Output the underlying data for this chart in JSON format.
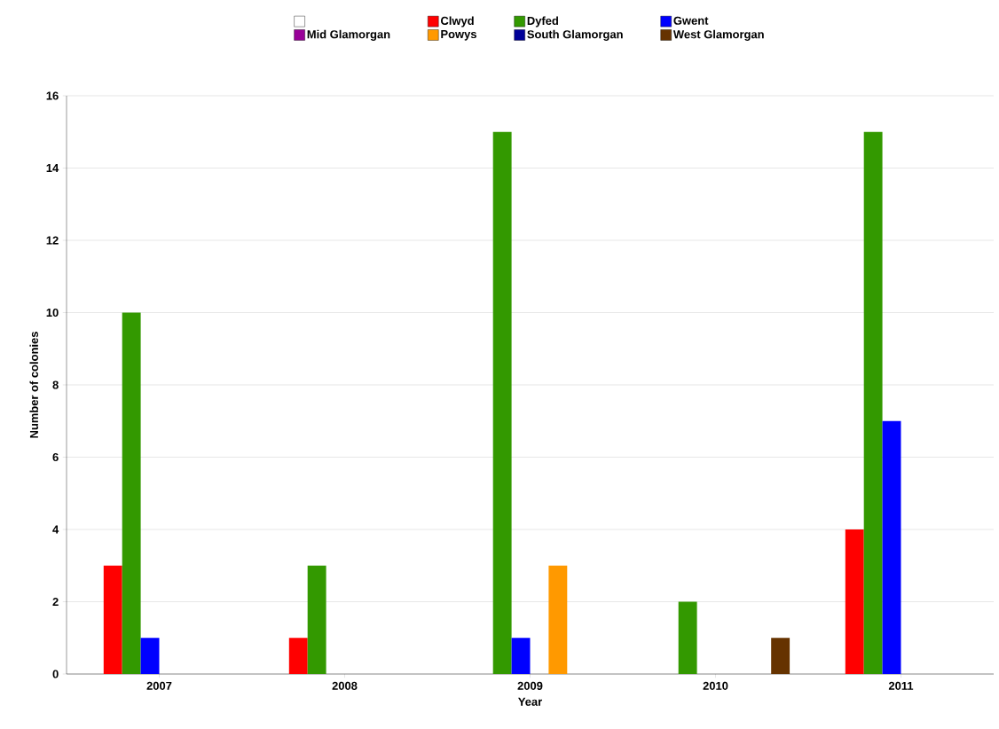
{
  "chart_data": {
    "type": "bar",
    "xlabel": "Year",
    "ylabel": "Number of colonies",
    "categories": [
      "2007",
      "2008",
      "2009",
      "2010",
      "2011"
    ],
    "series": [
      {
        "color": "#ffffff",
        "values": [
          null,
          null,
          null,
          null,
          null
        ]
      },
      {
        "name": "Clwyd",
        "color": "#ff0000",
        "values": [
          3,
          1,
          null,
          null,
          4
        ]
      },
      {
        "name": "Dyfed",
        "color": "#339900",
        "values": [
          10,
          3,
          15,
          2,
          15
        ]
      },
      {
        "name": "Gwent",
        "color": "#0000ff",
        "values": [
          1,
          null,
          1,
          null,
          7
        ]
      },
      {
        "name": "Mid Glamorgan",
        "color": "#990099",
        "values": [
          null,
          null,
          null,
          null,
          null
        ]
      },
      {
        "name": "Powys",
        "color": "#ff9900",
        "values": [
          null,
          null,
          3,
          null,
          null
        ]
      },
      {
        "name": "South Glamorgan",
        "color": "#000099",
        "values": [
          null,
          null,
          null,
          null,
          null
        ]
      },
      {
        "name": "West Glamorgan",
        "color": "#663300",
        "values": [
          null,
          null,
          null,
          1,
          null
        ]
      }
    ],
    "ylim": [
      0,
      16
    ],
    "yticks": [
      0,
      2,
      4,
      6,
      8,
      10,
      12,
      14,
      16
    ],
    "grid": "y",
    "legend": "top"
  }
}
